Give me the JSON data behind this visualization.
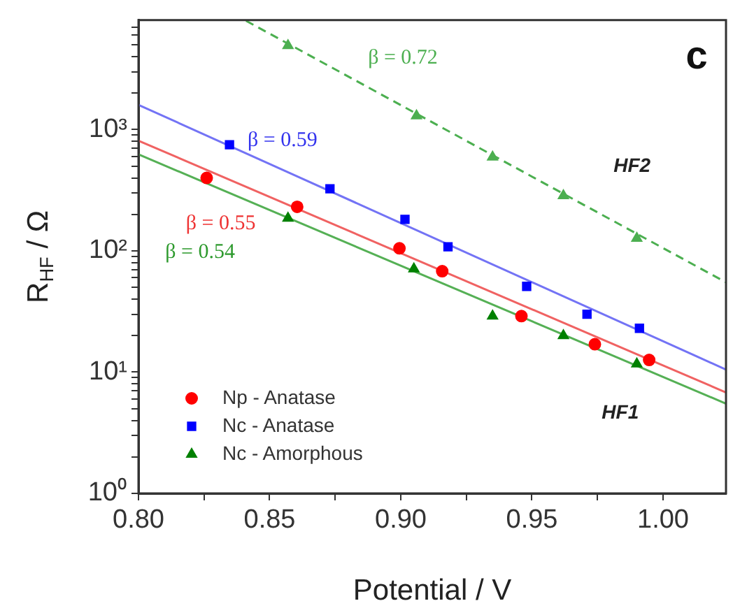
{
  "chart_data": {
    "type": "scatter",
    "xlabel": "Potential / V",
    "ylabel": "R$_{HF}$ / Ω",
    "log": "y",
    "legend": "bottom left",
    "grid": false,
    "xlim": [
      0.8,
      1.024
    ],
    "ylim": [
      1,
      8000
    ],
    "xticks": [
      {
        "value": 0.8,
        "label": "0.80"
      },
      {
        "value": 0.825,
        "label": null
      },
      {
        "value": 0.85,
        "label": "0.85"
      },
      {
        "value": 0.875,
        "label": null
      },
      {
        "value": 0.9,
        "label": "0.90"
      },
      {
        "value": 0.925,
        "label": null
      },
      {
        "value": 0.95,
        "label": "0.95"
      },
      {
        "value": 0.975,
        "label": null
      },
      {
        "value": 1.0,
        "label": "1.00"
      }
    ],
    "yticks": [
      {
        "value": 1,
        "label": "10⁰"
      },
      {
        "value": 2,
        "label": null
      },
      {
        "value": 3,
        "label": null
      },
      {
        "value": 4,
        "label": null
      },
      {
        "value": 5,
        "label": null
      },
      {
        "value": 6,
        "label": null
      },
      {
        "value": 7,
        "label": null
      },
      {
        "value": 8,
        "label": null
      },
      {
        "value": 9,
        "label": null
      },
      {
        "value": 10,
        "label": "10¹"
      },
      {
        "value": 20,
        "label": null
      },
      {
        "value": 30,
        "label": null
      },
      {
        "value": 40,
        "label": null
      },
      {
        "value": 50,
        "label": null
      },
      {
        "value": 60,
        "label": null
      },
      {
        "value": 70,
        "label": null
      },
      {
        "value": 80,
        "label": null
      },
      {
        "value": 90,
        "label": null
      },
      {
        "value": 100,
        "label": "10²"
      },
      {
        "value": 200,
        "label": null
      },
      {
        "value": 300,
        "label": null
      },
      {
        "value": 400,
        "label": null
      },
      {
        "value": 500,
        "label": null
      },
      {
        "value": 600,
        "label": null
      },
      {
        "value": 700,
        "label": null
      },
      {
        "value": 800,
        "label": null
      },
      {
        "value": 900,
        "label": null
      },
      {
        "value": 1000,
        "label": "10³"
      },
      {
        "value": 2000,
        "label": null
      },
      {
        "value": 3000,
        "label": null
      },
      {
        "value": 4000,
        "label": null
      },
      {
        "value": 5000,
        "label": null
      },
      {
        "value": 6000,
        "label": null
      },
      {
        "value": 7000,
        "label": null
      }
    ],
    "series": [
      {
        "name": "Np - Anatase",
        "marker": "circle",
        "color": "#ff0000",
        "x": [
          0.826,
          0.8605,
          0.8995,
          0.9158,
          0.946,
          0.974,
          0.9947
        ],
        "values": [
          400,
          231,
          105,
          68,
          29,
          17,
          12.6
        ]
      },
      {
        "name": "Nc - Anatase",
        "marker": "square",
        "color": "#0000ff",
        "x": [
          0.8347,
          0.873,
          0.9016,
          0.918,
          0.948,
          0.971,
          0.991
        ],
        "values": [
          750,
          325,
          182,
          108,
          51,
          30,
          23
        ]
      },
      {
        "name": "Nc - Amorphous",
        "marker": "triangle",
        "color": "#008000",
        "x": [
          0.857,
          0.905,
          0.935,
          0.962,
          0.99
        ],
        "values": [
          186,
          71,
          29,
          20,
          11.7
        ]
      },
      {
        "marker": "triangle",
        "color": "#4caf50",
        "x": [
          0.857,
          0.906,
          0.935,
          0.962,
          0.99
        ],
        "values": [
          4930,
          1300,
          593,
          285,
          127
        ]
      },
      {
        "type": "line",
        "marker": "none",
        "line_style": "solid",
        "color": "#f06262",
        "x": [
          0.8,
          1.024
        ],
        "values": [
          810,
          6.8
        ]
      },
      {
        "type": "line",
        "marker": "none",
        "line_style": "solid",
        "color": "#7373f5",
        "x": [
          0.8,
          1.024
        ],
        "values": [
          1600,
          10.5
        ]
      },
      {
        "type": "line",
        "marker": "none",
        "line_style": "solid",
        "color": "#55b055",
        "x": [
          0.8,
          1.024
        ],
        "values": [
          625,
          5.5
        ]
      },
      {
        "type": "line",
        "marker": "none",
        "line_style": "dashed",
        "color": "#4caf50",
        "x": [
          0.841,
          1.024
        ],
        "values": [
          7900,
          55
        ]
      }
    ],
    "annotations": [
      "β = 0.72",
      "β = 0.59",
      "β = 0.55",
      "β = 0.54",
      "HF2",
      "HF1",
      "c"
    ]
  }
}
